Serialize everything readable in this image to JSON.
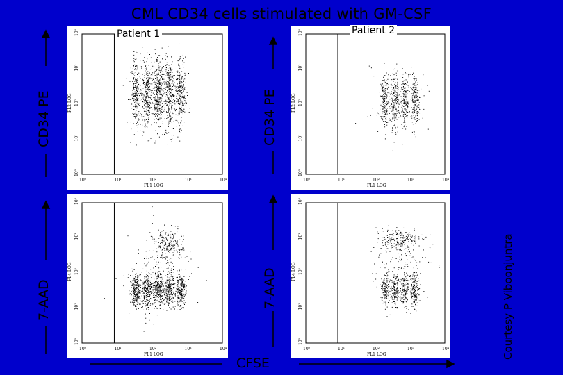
{
  "title": "CML CD34 cells stimulated with GM-CSF",
  "patients": [
    "Patient 1",
    "Patient 2"
  ],
  "labels": {
    "cd34": "CD34 PE",
    "aad": "7-AAD",
    "cfse": "CFSE",
    "credit": "Courtesy P Viboonjuntra"
  },
  "axes": {
    "x_name": "FL1 LOG",
    "y_name_top": "FL2 LOG",
    "y_name_bottom": "FL4 LOG",
    "ticks": [
      "10⁰",
      "10¹",
      "10²",
      "10³",
      "10⁴"
    ]
  },
  "colors": {
    "background": "#0000cc",
    "panel": "#ffffff",
    "text": "#000000"
  }
}
